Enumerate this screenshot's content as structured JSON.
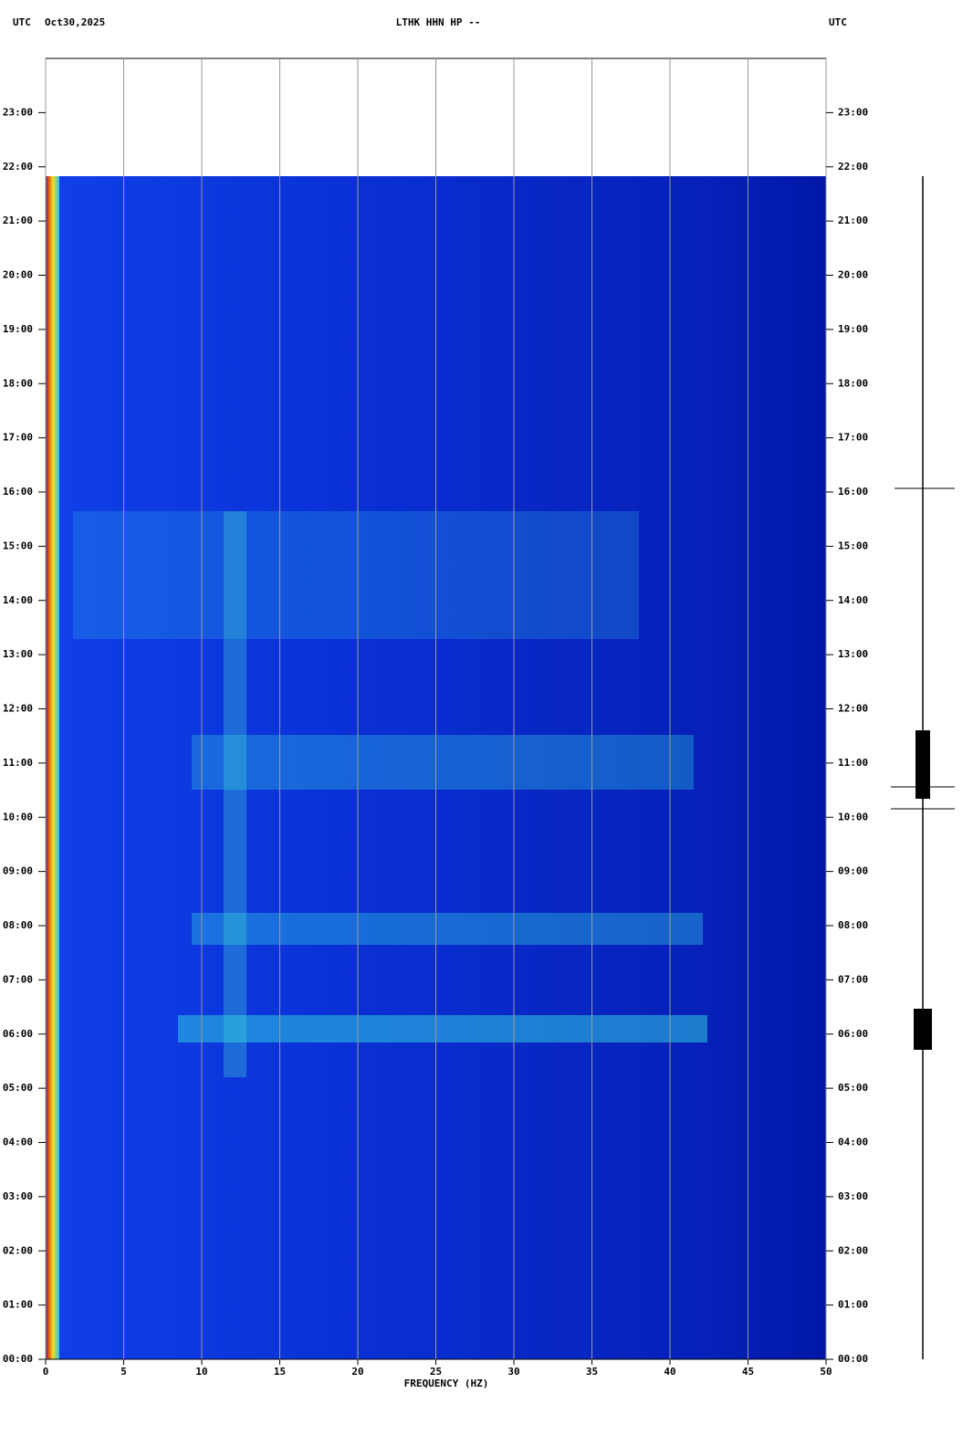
{
  "chart_data": {
    "type": "spectrogram",
    "title": "LTHK HHN HP --",
    "date": "Oct30,2025",
    "timezone_left": "UTC",
    "timezone_right": "UTC",
    "xlabel": "FREQUENCY (HZ)",
    "xlim": [
      0,
      50
    ],
    "xticks": [
      0,
      5,
      10,
      15,
      20,
      25,
      30,
      35,
      40,
      45,
      50
    ],
    "ylim": [
      0,
      24
    ],
    "yticks": [
      {
        "value": 0,
        "label": "00:00"
      },
      {
        "value": 1,
        "label": "01:00"
      },
      {
        "value": 2,
        "label": "02:00"
      },
      {
        "value": 3,
        "label": "03:00"
      },
      {
        "value": 4,
        "label": "04:00"
      },
      {
        "value": 5,
        "label": "05:00"
      },
      {
        "value": 6,
        "label": "06:00"
      },
      {
        "value": 7,
        "label": "07:00"
      },
      {
        "value": 8,
        "label": "08:00"
      },
      {
        "value": 9,
        "label": "09:00"
      },
      {
        "value": 10,
        "label": "10:00"
      },
      {
        "value": 11,
        "label": "11:00"
      },
      {
        "value": 12,
        "label": "12:00"
      },
      {
        "value": 13,
        "label": "13:00"
      },
      {
        "value": 14,
        "label": "14:00"
      },
      {
        "value": 15,
        "label": "15:00"
      },
      {
        "value": 16,
        "label": "16:00"
      },
      {
        "value": 17,
        "label": "17:00"
      },
      {
        "value": 18,
        "label": "18:00"
      },
      {
        "value": 19,
        "label": "19:00"
      },
      {
        "value": 20,
        "label": "20:00"
      },
      {
        "value": 21,
        "label": "21:00"
      },
      {
        "value": 22,
        "label": "22:00"
      },
      {
        "value": 23,
        "label": "23:00"
      }
    ],
    "grid": true
  }
}
